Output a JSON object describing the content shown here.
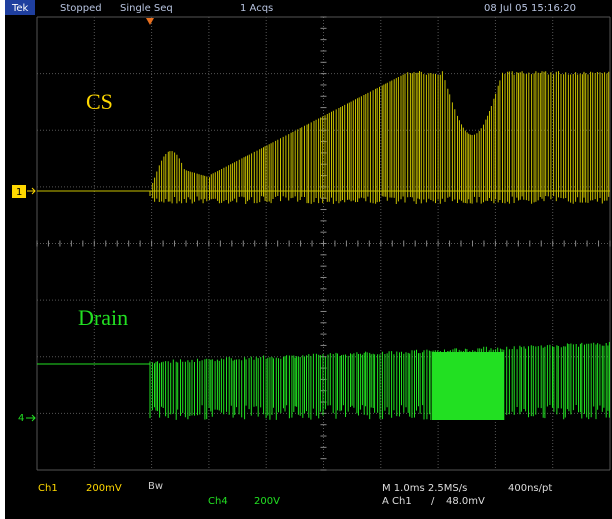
{
  "header": {
    "brand": "Tek",
    "status": "Stopped",
    "mode": "Single Seq",
    "acquisitions": "1 Acqs",
    "timestamp": "08 Jul 05 15:16:20"
  },
  "traces": [
    {
      "label": "CS",
      "marker": "1"
    },
    {
      "label": "Drain",
      "marker": "4"
    }
  ],
  "footer": {
    "ch1_label": "Ch1",
    "ch1_scale": "200mV",
    "bandwidth": "Bw",
    "ch4_label": "Ch4",
    "ch4_scale": "200V",
    "timebase": "M 1.0ms 2.5MS/s",
    "resolution": "400ns/pt",
    "trigger_source": "A Ch1",
    "trigger_slope": "/",
    "trigger_level": "48.0mV"
  }
}
